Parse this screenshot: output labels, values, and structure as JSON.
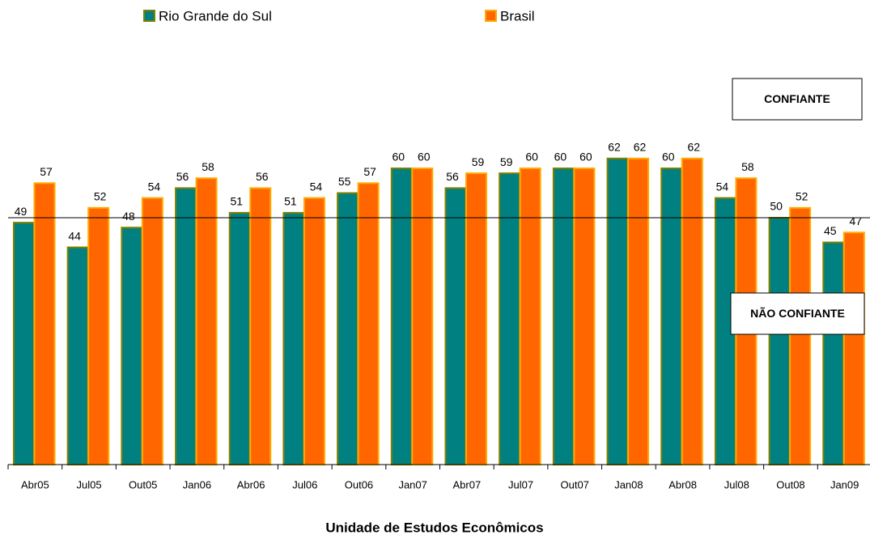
{
  "chart_data": {
    "type": "bar",
    "categories": [
      "Abr05",
      "Jul05",
      "Out05",
      "Jan06",
      "Abr06",
      "Jul06",
      "Out06",
      "Jan07",
      "Abr07",
      "Jul07",
      "Out07",
      "Jan08",
      "Abr08",
      "Jul08",
      "Out08",
      "Jan09"
    ],
    "series": [
      {
        "name": "Rio Grande do Sul",
        "color": "#008080",
        "values": [
          49,
          44,
          48,
          56,
          51,
          51,
          55,
          60,
          56,
          59,
          60,
          62,
          60,
          54,
          50,
          45
        ]
      },
      {
        "name": "Brasil",
        "color": "#ff6600",
        "values": [
          57,
          52,
          54,
          58,
          56,
          54,
          57,
          60,
          59,
          60,
          60,
          62,
          62,
          58,
          52,
          47
        ]
      }
    ],
    "ylim": [
      0,
      90
    ],
    "reference_line": 50,
    "annotations": [
      "CONFIANTE",
      "NÃO CONFIANTE"
    ],
    "footer": "Unidade de Estudos Econômicos"
  }
}
